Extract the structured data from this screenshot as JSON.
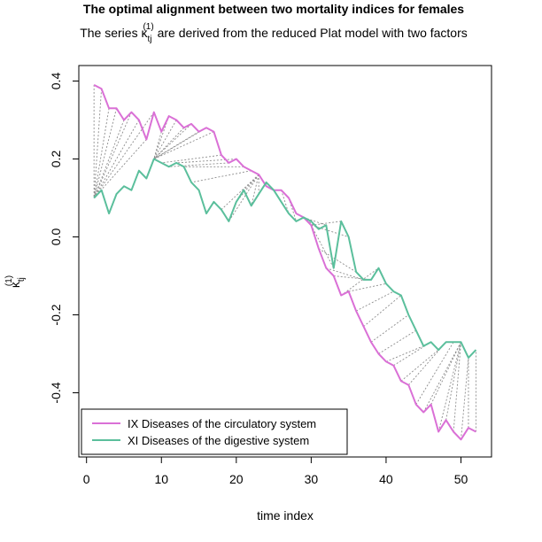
{
  "chart_data": {
    "type": "line",
    "title": "The optimal alignment between two mortality indices for females",
    "subtitle_prefix": "The series ",
    "subtitle_symbol": "κ",
    "subtitle_subscript": "tj",
    "subtitle_superscript": "(1)",
    "subtitle_suffix": " are derived from the reduced Plat model with two factors",
    "xlabel": "time index",
    "ylabel_symbol": "κ",
    "ylabel_subscript": "tj",
    "ylabel_superscript": "(1)",
    "xlim": [
      0,
      53
    ],
    "ylim": [
      -0.56,
      0.44
    ],
    "x_ticks": [
      0,
      10,
      20,
      30,
      40,
      50
    ],
    "x_tick_labels": [
      "0",
      "10",
      "20",
      "30",
      "40",
      "50"
    ],
    "y_ticks": [
      -0.4,
      -0.2,
      0.0,
      0.2,
      0.4
    ],
    "y_tick_labels": [
      "-0.4",
      "-0.2",
      "0.0",
      "0.2",
      "0.4"
    ],
    "legend_position": "bottom-left",
    "x": [
      1,
      2,
      3,
      4,
      5,
      6,
      7,
      8,
      9,
      10,
      11,
      12,
      13,
      14,
      15,
      16,
      17,
      18,
      19,
      20,
      21,
      22,
      23,
      24,
      25,
      26,
      27,
      28,
      29,
      30,
      31,
      32,
      33,
      34,
      35,
      36,
      37,
      38,
      39,
      40,
      41,
      42,
      43,
      44,
      45,
      46,
      47,
      48,
      49,
      50,
      51,
      52
    ],
    "series": [
      {
        "name": "IX Diseases of the circulatory system",
        "color": "#DA70D6",
        "values": [
          0.39,
          0.38,
          0.33,
          0.33,
          0.3,
          0.32,
          0.3,
          0.25,
          0.32,
          0.27,
          0.31,
          0.3,
          0.28,
          0.29,
          0.27,
          0.28,
          0.27,
          0.21,
          0.19,
          0.2,
          0.18,
          0.17,
          0.16,
          0.13,
          0.12,
          0.12,
          0.1,
          0.06,
          0.05,
          0.03,
          -0.03,
          -0.08,
          -0.1,
          -0.15,
          -0.14,
          -0.19,
          -0.23,
          -0.27,
          -0.3,
          -0.32,
          -0.33,
          -0.37,
          -0.38,
          -0.43,
          -0.45,
          -0.43,
          -0.5,
          -0.47,
          -0.5,
          -0.52,
          -0.49,
          -0.5
        ]
      },
      {
        "name": "XI Diseases of the digestive system",
        "color": "#5BBF9C",
        "values": [
          0.1,
          0.12,
          0.06,
          0.11,
          0.13,
          0.12,
          0.17,
          0.15,
          0.2,
          0.19,
          0.18,
          0.19,
          0.18,
          0.14,
          0.12,
          0.06,
          0.09,
          0.07,
          0.04,
          0.09,
          0.12,
          0.08,
          0.11,
          0.14,
          0.12,
          0.09,
          0.06,
          0.04,
          0.05,
          0.04,
          0.02,
          0.03,
          -0.08,
          0.04,
          0.0,
          -0.09,
          -0.11,
          -0.11,
          -0.08,
          -0.12,
          -0.14,
          -0.15,
          -0.2,
          -0.24,
          -0.28,
          -0.27,
          -0.29,
          -0.27,
          -0.27,
          -0.27,
          -0.31,
          -0.29
        ]
      }
    ],
    "alignment_pairs": [
      [
        1,
        1
      ],
      [
        2,
        1
      ],
      [
        3,
        1
      ],
      [
        4,
        1
      ],
      [
        5,
        1
      ],
      [
        6,
        1
      ],
      [
        7,
        1
      ],
      [
        8,
        1
      ],
      [
        9,
        1
      ],
      [
        10,
        9
      ],
      [
        11,
        9
      ],
      [
        12,
        9
      ],
      [
        13,
        9
      ],
      [
        14,
        9
      ],
      [
        15,
        9
      ],
      [
        16,
        9
      ],
      [
        17,
        9
      ],
      [
        18,
        10
      ],
      [
        19,
        11
      ],
      [
        20,
        12
      ],
      [
        21,
        13
      ],
      [
        22,
        14
      ],
      [
        23,
        18
      ],
      [
        23,
        19
      ],
      [
        23,
        20
      ],
      [
        23,
        21
      ],
      [
        23,
        22
      ],
      [
        23,
        23
      ],
      [
        24,
        24
      ],
      [
        25,
        25
      ],
      [
        25,
        26
      ],
      [
        26,
        27
      ],
      [
        27,
        28
      ],
      [
        28,
        29
      ],
      [
        29,
        30
      ],
      [
        29,
        31
      ],
      [
        29,
        32
      ],
      [
        30,
        33
      ],
      [
        30,
        34
      ],
      [
        30,
        35
      ],
      [
        31,
        36
      ],
      [
        32,
        37
      ],
      [
        33,
        38
      ],
      [
        34,
        39
      ],
      [
        35,
        40
      ],
      [
        36,
        41
      ],
      [
        37,
        42
      ],
      [
        38,
        43
      ],
      [
        39,
        44
      ],
      [
        40,
        45
      ],
      [
        41,
        46
      ],
      [
        42,
        47
      ],
      [
        43,
        48
      ],
      [
        44,
        49
      ],
      [
        45,
        50
      ],
      [
        46,
        50
      ],
      [
        47,
        50
      ],
      [
        48,
        50
      ],
      [
        49,
        50
      ],
      [
        50,
        51
      ],
      [
        51,
        51
      ],
      [
        52,
        52
      ]
    ]
  }
}
